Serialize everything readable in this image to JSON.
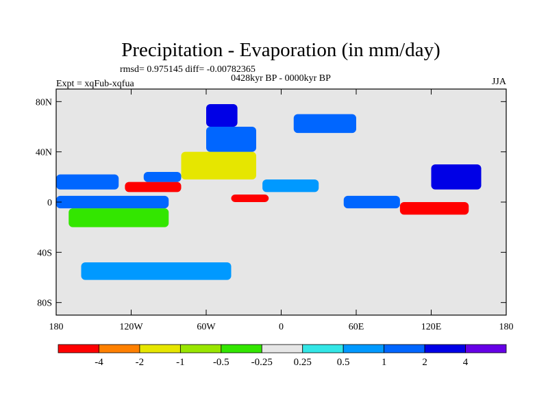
{
  "chart_data": {
    "type": "heatmap",
    "title": "Precipitation - Evaporation (in mm/day)",
    "stats_line": "rmsd= 0.975145 diff= -0.00782365",
    "period_line": "0428kyr BP - 0000kyr BP",
    "experiment_label": "Expt = xqFub-xqfua",
    "season_label": "JJA",
    "xlim": [
      -180,
      180
    ],
    "ylim": [
      -90,
      90
    ],
    "x_ticks": [
      {
        "value": -180,
        "label": "180"
      },
      {
        "value": -120,
        "label": "120W"
      },
      {
        "value": -60,
        "label": "60W"
      },
      {
        "value": 0,
        "label": "0"
      },
      {
        "value": 60,
        "label": "60E"
      },
      {
        "value": 120,
        "label": "120E"
      },
      {
        "value": 180,
        "label": "180"
      }
    ],
    "y_ticks": [
      {
        "value": 80,
        "label": "80N"
      },
      {
        "value": 40,
        "label": "40N"
      },
      {
        "value": 0,
        "label": "0"
      },
      {
        "value": -40,
        "label": "40S"
      },
      {
        "value": -80,
        "label": "80S"
      }
    ],
    "colorbar": {
      "colors": [
        "#ff0000",
        "#ff8000",
        "#e6e600",
        "#99e600",
        "#33e600",
        "#e6e6e6",
        "#33e6e6",
        "#0099ff",
        "#0066ff",
        "#0000e6",
        "#6600e6"
      ],
      "labels": [
        "-4",
        "-2",
        "-1",
        "-0.5",
        "-0.25",
        "0.25",
        "0.5",
        "1",
        "2",
        "4"
      ]
    },
    "regions": [
      {
        "name": "background-near-zero",
        "level": 5,
        "lon": [
          -180,
          180
        ],
        "lat": [
          -90,
          90
        ]
      },
      {
        "name": "north-pacific-wet",
        "level": 8,
        "lon": [
          -180,
          -130
        ],
        "lat": [
          10,
          22
        ]
      },
      {
        "name": "east-pacific-dry",
        "level": 4,
        "lon": [
          -170,
          -90
        ],
        "lat": [
          -20,
          -5
        ]
      },
      {
        "name": "equatorial-pacific-wet",
        "level": 8,
        "lon": [
          -180,
          -90
        ],
        "lat": [
          -5,
          5
        ]
      },
      {
        "name": "itcz-east-pacific-dry",
        "level": 0,
        "lon": [
          -125,
          -80
        ],
        "lat": [
          8,
          16
        ]
      },
      {
        "name": "central-america-wet",
        "level": 8,
        "lon": [
          -110,
          -80
        ],
        "lat": [
          16,
          24
        ]
      },
      {
        "name": "north-atlantic-dry",
        "level": 2,
        "lon": [
          -80,
          -20
        ],
        "lat": [
          18,
          40
        ]
      },
      {
        "name": "tropical-atlantic-dry",
        "level": 0,
        "lon": [
          -40,
          -10
        ],
        "lat": [
          0,
          6
        ]
      },
      {
        "name": "north-atlantic-storm-wet",
        "level": 8,
        "lon": [
          -60,
          -20
        ],
        "lat": [
          40,
          60
        ]
      },
      {
        "name": "greenland-wet",
        "level": 9,
        "lon": [
          -60,
          -35
        ],
        "lat": [
          60,
          78
        ]
      },
      {
        "name": "siberia-wet",
        "level": 8,
        "lon": [
          10,
          60
        ],
        "lat": [
          55,
          70
        ]
      },
      {
        "name": "southern-ocean-wet",
        "level": 7,
        "lon": [
          -160,
          -40
        ],
        "lat": [
          -62,
          -48
        ]
      },
      {
        "name": "indian-ocean-wet",
        "level": 8,
        "lon": [
          50,
          95
        ],
        "lat": [
          -5,
          5
        ]
      },
      {
        "name": "maritime-continent-dry",
        "level": 0,
        "lon": [
          95,
          150
        ],
        "lat": [
          -10,
          0
        ]
      },
      {
        "name": "west-pacific-wet",
        "level": 9,
        "lon": [
          120,
          160
        ],
        "lat": [
          10,
          30
        ]
      },
      {
        "name": "sahel-wet",
        "level": 7,
        "lon": [
          -15,
          30
        ],
        "lat": [
          8,
          18
        ]
      }
    ]
  }
}
